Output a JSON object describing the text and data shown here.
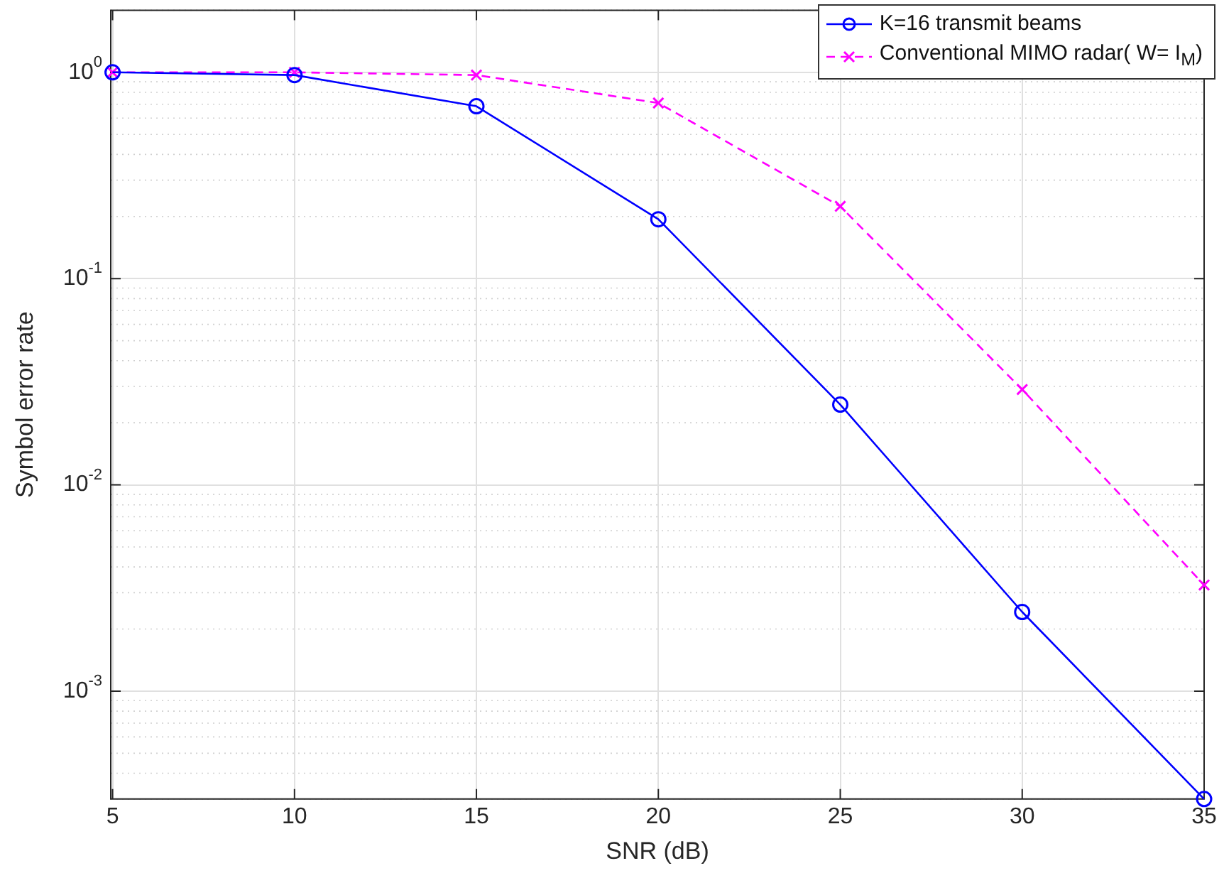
{
  "chart_data": {
    "type": "line",
    "xlabel": "SNR (dB)",
    "ylabel": "Symbol error rate",
    "log": "y",
    "grid": true,
    "legend": "top right",
    "x": [
      5,
      10,
      15,
      20,
      25,
      30,
      35
    ],
    "xlim": [
      4.95,
      35
    ],
    "xticks": [
      5,
      10,
      15,
      20,
      25,
      30,
      35
    ],
    "ylim": [
      0.0003,
      2
    ],
    "yticks": [
      {
        "value": 0.001,
        "label": "10$^{-3}$"
      },
      {
        "value": 0.01,
        "label": "10$^{-2}$"
      },
      {
        "value": 0.1,
        "label": "10$^{-1}$"
      },
      {
        "value": 1,
        "label": "10$^{0}$"
      }
    ],
    "series": [
      {
        "name": "K=16 transmit beams",
        "color": "#0000ff",
        "marker": "circle",
        "line_style": "solid",
        "values": [
          1.0,
          0.97,
          0.685,
          0.194,
          0.0245,
          0.00242,
          0.0003
        ]
      },
      {
        "name": "Conventional MIMO radar(  W= I$_{M}$)",
        "color": "#ff00ff",
        "marker": "cross",
        "line_style": "dashed",
        "values": [
          1.0,
          1.0,
          0.97,
          0.71,
          0.224,
          0.029,
          0.00327
        ]
      }
    ]
  }
}
